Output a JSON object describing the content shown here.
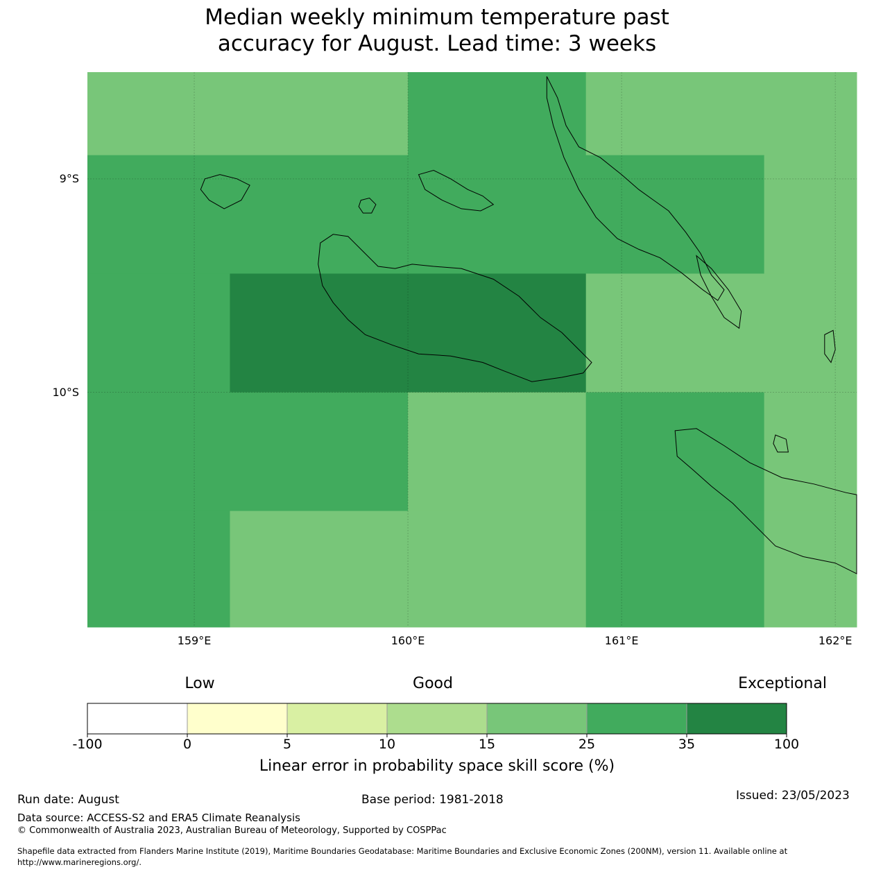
{
  "title": {
    "line1": "Median weekly minimum temperature past",
    "line2": "accuracy for August. Lead time: 3 weeks"
  },
  "map": {
    "lon_range": [
      158.5,
      162.1
    ],
    "lat_range": [
      -8.5,
      -11.1
    ],
    "lat_ticks": [
      {
        "value": -9,
        "label": "9°S"
      },
      {
        "value": -10,
        "label": "10°S"
      }
    ],
    "lon_ticks": [
      {
        "value": 159,
        "label": "159°E"
      },
      {
        "value": 160,
        "label": "160°E"
      },
      {
        "value": 161,
        "label": "161°E"
      },
      {
        "value": 162,
        "label": "162°E"
      }
    ],
    "cells": [
      {
        "lon0": 158.5,
        "lon1": 160.0,
        "lat0": -8.5,
        "lat1": -8.889,
        "category": 4
      },
      {
        "lon0": 160.0,
        "lon1": 160.833,
        "lat0": -8.5,
        "lat1": -8.889,
        "category": 5
      },
      {
        "lon0": 160.833,
        "lon1": 162.1,
        "lat0": -8.5,
        "lat1": -8.889,
        "category": 4
      },
      {
        "lon0": 158.5,
        "lon1": 161.667,
        "lat0": -8.889,
        "lat1": -9.444,
        "category": 5
      },
      {
        "lon0": 161.667,
        "lon1": 162.1,
        "lat0": -8.889,
        "lat1": -9.444,
        "category": 4
      },
      {
        "lon0": 158.5,
        "lon1": 159.167,
        "lat0": -9.444,
        "lat1": -10.0,
        "category": 5
      },
      {
        "lon0": 159.167,
        "lon1": 160.833,
        "lat0": -9.444,
        "lat1": -10.0,
        "category": 6
      },
      {
        "lon0": 160.833,
        "lon1": 162.1,
        "lat0": -9.444,
        "lat1": -10.0,
        "category": 4
      },
      {
        "lon0": 158.5,
        "lon1": 160.0,
        "lat0": -10.0,
        "lat1": -10.556,
        "category": 5
      },
      {
        "lon0": 160.0,
        "lon1": 160.833,
        "lat0": -10.0,
        "lat1": -10.556,
        "category": 4
      },
      {
        "lon0": 160.833,
        "lon1": 161.667,
        "lat0": -10.0,
        "lat1": -10.556,
        "category": 5
      },
      {
        "lon0": 161.667,
        "lon1": 162.1,
        "lat0": -10.0,
        "lat1": -10.556,
        "category": 4
      },
      {
        "lon0": 158.5,
        "lon1": 159.167,
        "lat0": -10.556,
        "lat1": -11.1,
        "category": 5
      },
      {
        "lon0": 159.167,
        "lon1": 160.833,
        "lat0": -10.556,
        "lat1": -11.1,
        "category": 4
      },
      {
        "lon0": 160.833,
        "lon1": 161.667,
        "lat0": -10.556,
        "lat1": -11.1,
        "category": 5
      },
      {
        "lon0": 161.667,
        "lon1": 162.1,
        "lat0": -10.556,
        "lat1": -11.1,
        "category": 4
      }
    ],
    "coastlines": [
      {
        "name": "guadalcanal",
        "points": [
          [
            159.59,
            -9.3
          ],
          [
            159.65,
            -9.26
          ],
          [
            159.72,
            -9.27
          ],
          [
            159.78,
            -9.33
          ],
          [
            159.86,
            -9.41
          ],
          [
            159.94,
            -9.42
          ],
          [
            160.02,
            -9.4
          ],
          [
            160.12,
            -9.41
          ],
          [
            160.25,
            -9.42
          ],
          [
            160.4,
            -9.47
          ],
          [
            160.52,
            -9.55
          ],
          [
            160.62,
            -9.65
          ],
          [
            160.72,
            -9.72
          ],
          [
            160.8,
            -9.8
          ],
          [
            160.86,
            -9.86
          ],
          [
            160.82,
            -9.91
          ],
          [
            160.72,
            -9.93
          ],
          [
            160.58,
            -9.95
          ],
          [
            160.45,
            -9.9
          ],
          [
            160.35,
            -9.86
          ],
          [
            160.2,
            -9.83
          ],
          [
            160.05,
            -9.82
          ],
          [
            159.93,
            -9.78
          ],
          [
            159.8,
            -9.73
          ],
          [
            159.72,
            -9.66
          ],
          [
            159.65,
            -9.58
          ],
          [
            159.6,
            -9.5
          ],
          [
            159.58,
            -9.4
          ],
          [
            159.59,
            -9.3
          ]
        ]
      },
      {
        "name": "florida-islands",
        "points": [
          [
            160.05,
            -8.98
          ],
          [
            160.12,
            -8.96
          ],
          [
            160.2,
            -9.0
          ],
          [
            160.28,
            -9.05
          ],
          [
            160.35,
            -9.08
          ],
          [
            160.4,
            -9.12
          ],
          [
            160.34,
            -9.15
          ],
          [
            160.25,
            -9.14
          ],
          [
            160.16,
            -9.1
          ],
          [
            160.08,
            -9.05
          ],
          [
            160.05,
            -8.98
          ]
        ]
      },
      {
        "name": "savo",
        "points": [
          [
            159.78,
            -9.1
          ],
          [
            159.82,
            -9.09
          ],
          [
            159.85,
            -9.12
          ],
          [
            159.83,
            -9.16
          ],
          [
            159.79,
            -9.16
          ],
          [
            159.77,
            -9.13
          ],
          [
            159.78,
            -9.1
          ]
        ]
      },
      {
        "name": "russell-islands",
        "points": [
          [
            159.05,
            -9.0
          ],
          [
            159.12,
            -8.98
          ],
          [
            159.2,
            -9.0
          ],
          [
            159.26,
            -9.03
          ],
          [
            159.22,
            -9.1
          ],
          [
            159.14,
            -9.14
          ],
          [
            159.07,
            -9.1
          ],
          [
            159.03,
            -9.05
          ],
          [
            159.05,
            -9.0
          ]
        ]
      },
      {
        "name": "malaita",
        "points": [
          [
            160.65,
            -8.52
          ],
          [
            160.7,
            -8.62
          ],
          [
            160.74,
            -8.75
          ],
          [
            160.8,
            -8.85
          ],
          [
            160.9,
            -8.9
          ],
          [
            161.0,
            -8.98
          ],
          [
            161.08,
            -9.05
          ],
          [
            161.15,
            -9.1
          ],
          [
            161.22,
            -9.15
          ],
          [
            161.3,
            -9.25
          ],
          [
            161.37,
            -9.35
          ],
          [
            161.42,
            -9.45
          ],
          [
            161.48,
            -9.52
          ],
          [
            161.45,
            -9.57
          ],
          [
            161.38,
            -9.52
          ],
          [
            161.28,
            -9.44
          ],
          [
            161.18,
            -9.37
          ],
          [
            161.08,
            -9.33
          ],
          [
            160.98,
            -9.28
          ],
          [
            160.88,
            -9.18
          ],
          [
            160.8,
            -9.05
          ],
          [
            160.73,
            -8.9
          ],
          [
            160.68,
            -8.75
          ],
          [
            160.65,
            -8.62
          ],
          [
            160.65,
            -8.52
          ]
        ]
      },
      {
        "name": "small-malaita",
        "points": [
          [
            161.35,
            -9.36
          ],
          [
            161.42,
            -9.42
          ],
          [
            161.5,
            -9.52
          ],
          [
            161.56,
            -9.62
          ],
          [
            161.55,
            -9.7
          ],
          [
            161.48,
            -9.65
          ],
          [
            161.42,
            -9.55
          ],
          [
            161.37,
            -9.45
          ],
          [
            161.35,
            -9.36
          ]
        ]
      },
      {
        "name": "ulawa",
        "points": [
          [
            161.95,
            -9.73
          ],
          [
            161.99,
            -9.71
          ],
          [
            162.0,
            -9.8
          ],
          [
            161.98,
            -9.86
          ],
          [
            161.95,
            -9.82
          ],
          [
            161.95,
            -9.73
          ]
        ]
      },
      {
        "name": "makira",
        "points": [
          [
            161.25,
            -10.18
          ],
          [
            161.35,
            -10.17
          ],
          [
            161.48,
            -10.25
          ],
          [
            161.6,
            -10.33
          ],
          [
            161.75,
            -10.4
          ],
          [
            161.9,
            -10.43
          ],
          [
            162.05,
            -10.47
          ],
          [
            162.1,
            -10.48
          ],
          [
            162.1,
            -10.85
          ],
          [
            162.0,
            -10.8
          ],
          [
            161.85,
            -10.77
          ],
          [
            161.72,
            -10.72
          ],
          [
            161.62,
            -10.62
          ],
          [
            161.52,
            -10.52
          ],
          [
            161.42,
            -10.44
          ],
          [
            161.33,
            -10.36
          ],
          [
            161.26,
            -10.3
          ],
          [
            161.25,
            -10.18
          ]
        ]
      },
      {
        "name": "ugi",
        "points": [
          [
            161.72,
            -10.2
          ],
          [
            161.77,
            -10.22
          ],
          [
            161.78,
            -10.28
          ],
          [
            161.73,
            -10.28
          ],
          [
            161.71,
            -10.24
          ],
          [
            161.72,
            -10.2
          ]
        ]
      }
    ]
  },
  "colorbar": {
    "categories": [
      {
        "range": "-100 to 0",
        "color": "#ffffff"
      },
      {
        "range": "0 to 5",
        "color": "#ffffcc"
      },
      {
        "range": "5 to 10",
        "color": "#d9f0a3"
      },
      {
        "range": "10 to 15",
        "color": "#addd8e"
      },
      {
        "range": "15 to 25",
        "color": "#78c679"
      },
      {
        "range": "25 to 35",
        "color": "#41ab5d"
      },
      {
        "range": "35 to 100",
        "color": "#238443"
      }
    ],
    "ticks": [
      "-100",
      "0",
      "5",
      "10",
      "15",
      "25",
      "35",
      "100"
    ],
    "label_low": "Low",
    "label_good": "Good",
    "label_exceptional": "Exceptional",
    "title": "Linear error in probability space skill score (%)"
  },
  "footer": {
    "run_date": "Run date: August",
    "base_period": "Base period: 1981-2018",
    "issued": "Issued: 23/05/2023",
    "data_source": "Data source: ACCESS-S2 and ERA5 Climate Reanalysis",
    "copyright": "© Commonwealth of Australia 2023, Australian Bureau of Meteorology, Supported by COSPPac",
    "shapefile_line1": "Shapefile data extracted from Flanders Marine Institute (2019), Maritime Boundaries Geodatabase: Maritime Boundaries and Exclusive Economic Zones (200NM), version 11. Available online at",
    "shapefile_line2": "http://www.marineregions.org/."
  }
}
